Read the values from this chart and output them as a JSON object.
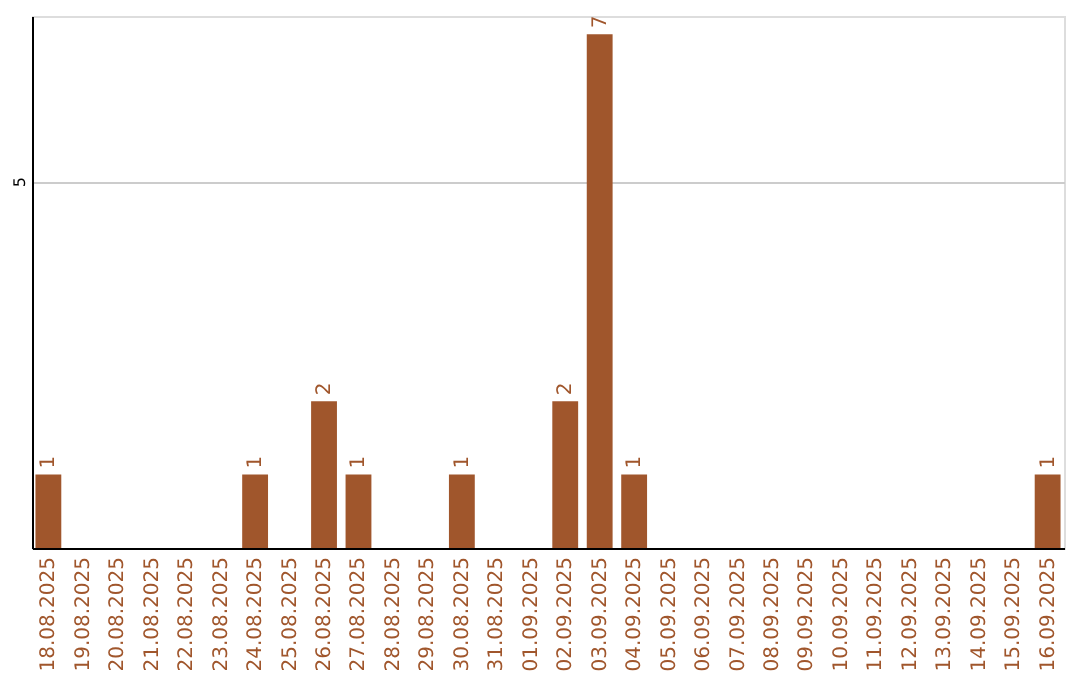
{
  "chart_data": {
    "type": "bar",
    "categories": [
      "18.08.2025",
      "19.08.2025",
      "20.08.2025",
      "21.08.2025",
      "22.08.2025",
      "23.08.2025",
      "24.08.2025",
      "25.08.2025",
      "26.08.2025",
      "27.08.2025",
      "28.08.2025",
      "29.08.2025",
      "30.08.2025",
      "31.08.2025",
      "01.09.2025",
      "02.09.2025",
      "03.09.2025",
      "04.09.2025",
      "05.09.2025",
      "06.09.2025",
      "07.09.2025",
      "08.09.2025",
      "09.09.2025",
      "10.09.2025",
      "11.09.2025",
      "12.09.2025",
      "13.09.2025",
      "14.09.2025",
      "15.09.2025",
      "16.09.2025"
    ],
    "values": [
      1,
      0,
      0,
      0,
      0,
      0,
      1,
      0,
      2,
      1,
      0,
      0,
      1,
      0,
      0,
      2,
      7,
      1,
      0,
      0,
      0,
      0,
      0,
      0,
      0,
      0,
      0,
      0,
      0,
      1
    ],
    "value_labels": [
      "1",
      null,
      null,
      null,
      null,
      null,
      "1",
      null,
      "2",
      "1",
      null,
      null,
      "1",
      null,
      null,
      "2",
      "7",
      "1",
      null,
      null,
      null,
      null,
      null,
      null,
      null,
      null,
      null,
      null,
      null,
      "1"
    ],
    "color": "#a0562c",
    "ylim": [
      0,
      7.25
    ],
    "yticks": [
      5
    ],
    "grid": "y"
  }
}
